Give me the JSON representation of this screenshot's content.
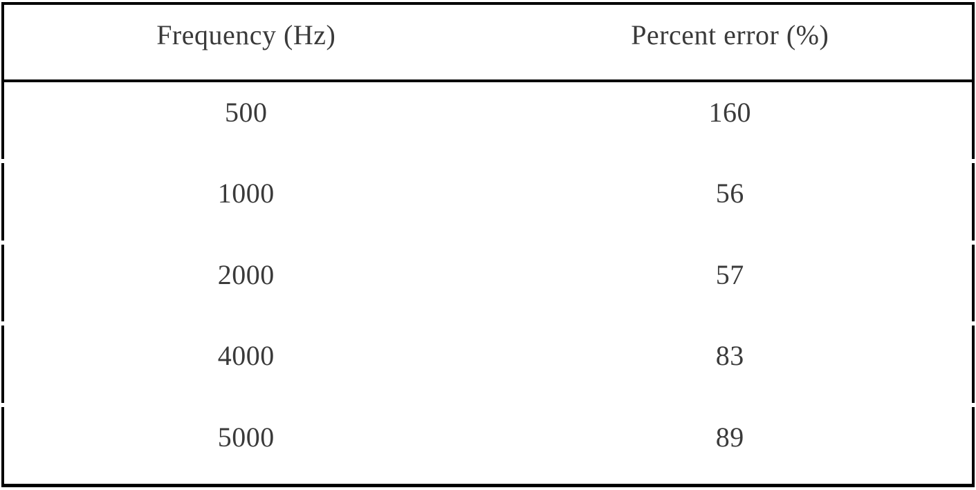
{
  "table": {
    "columns": [
      {
        "label": "Frequency (Hz)"
      },
      {
        "label": "Percent error (%)"
      }
    ],
    "rows": [
      [
        "500",
        "160"
      ],
      [
        "1000",
        "56"
      ],
      [
        "2000",
        "57"
      ],
      [
        "4000",
        "83"
      ],
      [
        "5000",
        "89"
      ]
    ]
  },
  "colors": {
    "border": "#000000",
    "text": "#3a3a3a",
    "background": "#ffffff"
  },
  "chart_data": {
    "type": "table",
    "columns": [
      "Frequency (Hz)",
      "Percent error (%)"
    ],
    "rows": [
      [
        500,
        160
      ],
      [
        1000,
        56
      ],
      [
        2000,
        57
      ],
      [
        4000,
        83
      ],
      [
        5000,
        89
      ]
    ]
  }
}
